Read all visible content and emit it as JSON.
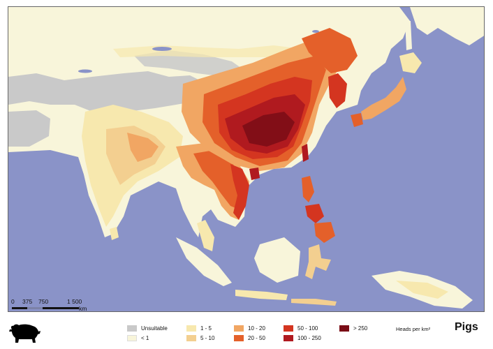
{
  "map": {
    "colors": {
      "ocean": "#8a93c8",
      "unsuitable": "#c9c9c9",
      "lt1": "#f8f5da",
      "c1_5": "#f7e8ae",
      "c5_10": "#f3cf90",
      "c10_20": "#f1a663",
      "c20_50": "#e4602a",
      "c50_100": "#d43520",
      "c100_250": "#b01a1f",
      "gt250": "#7a0d16"
    }
  },
  "scalebar": {
    "labels": [
      "0",
      "375",
      "750",
      "1 500"
    ],
    "unit": "km"
  },
  "legend": {
    "items": [
      {
        "label": "Unsuitable",
        "color": "#c9c9c9"
      },
      {
        "label": "< 1",
        "color": "#f8f5da"
      },
      {
        "label": "1 - 5",
        "color": "#f7e8ae"
      },
      {
        "label": "5 - 10",
        "color": "#f3cf90"
      },
      {
        "label": "10 - 20",
        "color": "#f1a663"
      },
      {
        "label": "20 - 50",
        "color": "#e4602a"
      },
      {
        "label": "50 - 100",
        "color": "#d43520"
      },
      {
        "label": "100 - 250",
        "color": "#b01a1f"
      },
      {
        "label": "> 250",
        "color": "#7a0d16"
      }
    ],
    "units_label": "Heads per km²"
  },
  "title": "Pigs",
  "icon": "pig-icon"
}
